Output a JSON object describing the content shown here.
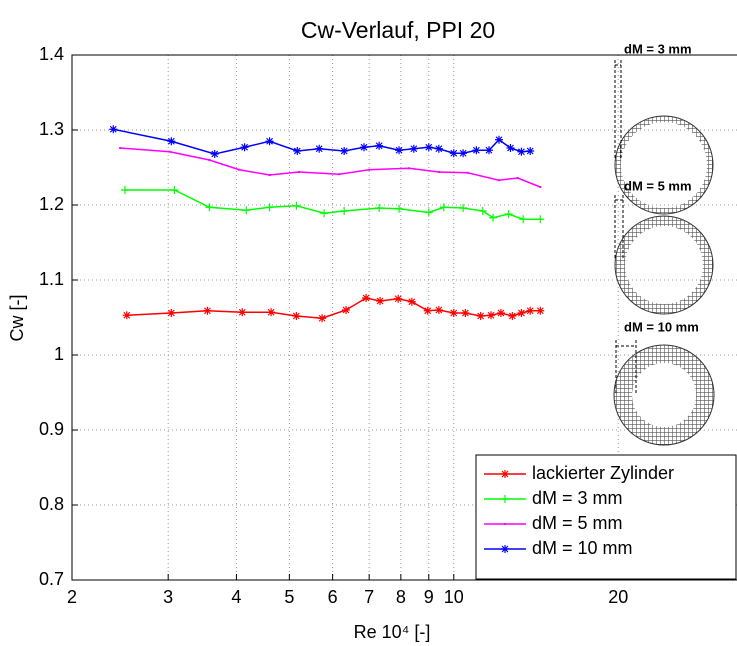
{
  "chart_data": {
    "type": "line",
    "title": "Cw-Verlauf, PPI 20",
    "xlabel": "Re 10⁴ [-]",
    "ylabel": "Cw [-]",
    "xscale": "log",
    "xlim": [
      2,
      33
    ],
    "ylim": [
      0.7,
      1.4
    ],
    "xticks": [
      2,
      3,
      4,
      5,
      6,
      7,
      8,
      9,
      10,
      20
    ],
    "yticks": [
      0.7,
      0.8,
      0.9,
      1,
      1.1,
      1.2,
      1.3,
      1.4
    ],
    "grid": true,
    "legend": "lower right",
    "series": [
      {
        "name": "lackierter Zylinder",
        "color": "#ff0000",
        "marker": "*",
        "x": [
          2.52,
          3.04,
          3.54,
          4.1,
          4.63,
          5.15,
          5.74,
          6.35,
          6.91,
          7.33,
          7.91,
          8.38,
          8.96,
          9.39,
          10.0,
          10.5,
          11.2,
          11.7,
          12.2,
          12.8,
          13.3,
          13.8,
          14.4
        ],
        "values": [
          1.053,
          1.056,
          1.059,
          1.057,
          1.057,
          1.052,
          1.049,
          1.06,
          1.076,
          1.072,
          1.075,
          1.071,
          1.059,
          1.06,
          1.056,
          1.056,
          1.052,
          1.053,
          1.056,
          1.052,
          1.056,
          1.059,
          1.059
        ]
      },
      {
        "name": "dM = 3 mm",
        "color": "#00ff00",
        "marker": "+",
        "x": [
          2.5,
          3.08,
          3.57,
          4.17,
          4.6,
          5.15,
          5.79,
          6.3,
          7.3,
          7.94,
          9.0,
          9.59,
          10.4,
          11.3,
          11.8,
          12.6,
          13.4,
          14.4
        ],
        "values": [
          1.22,
          1.22,
          1.197,
          1.193,
          1.197,
          1.199,
          1.189,
          1.192,
          1.196,
          1.195,
          1.19,
          1.197,
          1.196,
          1.192,
          1.183,
          1.188,
          1.181,
          1.181
        ]
      },
      {
        "name": "dM = 5 mm",
        "color": "#ff00ff",
        "marker": ".",
        "x": [
          2.45,
          3.02,
          3.57,
          4.05,
          4.6,
          5.21,
          6.17,
          7.0,
          8.28,
          9.39,
          10.6,
          12.1,
          13.1,
          14.4
        ],
        "values": [
          1.276,
          1.271,
          1.26,
          1.247,
          1.24,
          1.244,
          1.241,
          1.247,
          1.249,
          1.244,
          1.243,
          1.233,
          1.236,
          1.224
        ]
      },
      {
        "name": "dM = 10 mm",
        "color": "#0000ff",
        "marker": "*",
        "x": [
          2.38,
          3.04,
          3.65,
          4.14,
          4.6,
          5.17,
          5.67,
          6.3,
          6.85,
          7.3,
          7.94,
          8.45,
          9.0,
          9.39,
          10.0,
          10.4,
          11.0,
          11.6,
          12.1,
          12.7,
          13.3,
          13.8
        ],
        "values": [
          1.301,
          1.285,
          1.268,
          1.277,
          1.285,
          1.272,
          1.275,
          1.272,
          1.277,
          1.279,
          1.273,
          1.275,
          1.277,
          1.275,
          1.269,
          1.269,
          1.273,
          1.273,
          1.287,
          1.276,
          1.271,
          1.272
        ]
      }
    ],
    "annotations": [
      "dM = 3 mm",
      "dM = 5 mm",
      "dM = 10 mm"
    ]
  }
}
